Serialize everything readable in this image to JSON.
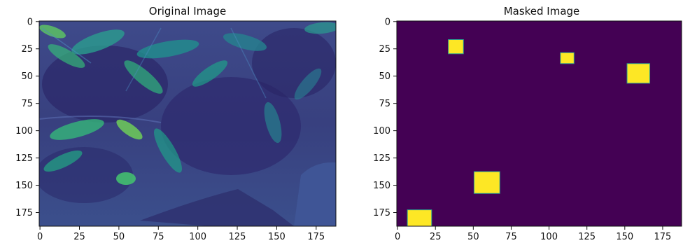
{
  "panels": [
    {
      "title": "Original Image",
      "kind": "photo",
      "colormap": "viridis",
      "x_ticks": [
        "0",
        "25",
        "50",
        "75",
        "100",
        "125",
        "150",
        "175"
      ],
      "y_ticks": [
        "0",
        "25",
        "50",
        "75",
        "100",
        "125",
        "150",
        "175"
      ]
    },
    {
      "title": "Masked Image",
      "kind": "mask",
      "background_color": "#440154",
      "mask_color": "#fde725",
      "x_ticks": [
        "0",
        "25",
        "50",
        "75",
        "100",
        "125",
        "150",
        "175"
      ],
      "y_ticks": [
        "0",
        "25",
        "50",
        "75",
        "100",
        "125",
        "150",
        "175"
      ]
    }
  ],
  "image_extent": {
    "x_max": 188,
    "y_max": 188
  },
  "mask_regions": [
    {
      "x0": 34,
      "x1": 44,
      "y0": 17,
      "y1": 30
    },
    {
      "x0": 108,
      "x1": 117,
      "y0": 29,
      "y1": 39
    },
    {
      "x0": 152,
      "x1": 167,
      "y0": 39,
      "y1": 57
    },
    {
      "x0": 51,
      "x1": 68,
      "y0": 138,
      "y1": 158
    },
    {
      "x0": 7,
      "x1": 23,
      "y0": 173,
      "y1": 188
    }
  ]
}
